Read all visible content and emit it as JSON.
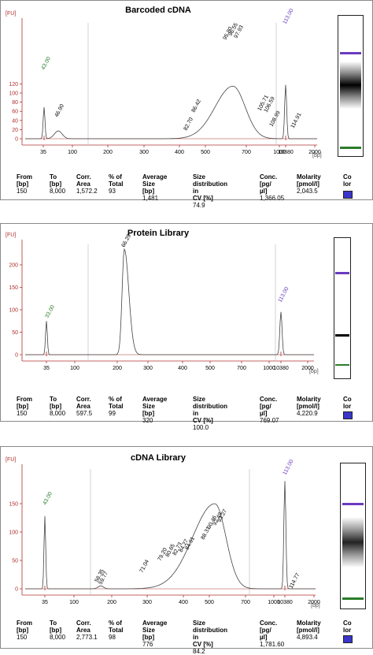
{
  "table_headers": [
    "From\n[bp]",
    "To [bp]",
    "Corr.\nArea",
    "% of\nTotal",
    "Average Size\n[bp]",
    "Size distribution in\nCV [%]",
    "Conc.\n[pg/µl]",
    "Molarity\n[pmol/l]",
    "Co\nlor"
  ],
  "panels": [
    {
      "title": "Barcoded cDNA",
      "fu_label": "[FU]",
      "bp_label": "[bp]",
      "yticks": [
        "0",
        "20",
        "40",
        "60",
        "80",
        "100",
        "120"
      ],
      "xticks": [
        "35",
        "100",
        "200",
        "300",
        "400",
        "500",
        "700",
        "1000",
        "2000",
        "10380"
      ],
      "row": [
        "150",
        "8,000",
        "1,572.2",
        "93",
        "1,481",
        "74.9",
        "1,366.05",
        "2,043.5"
      ],
      "color": "#3b36c9",
      "peak_labels": [
        {
          "text": "43.00",
          "color": "#2a7d2a"
        },
        {
          "text": "46.90",
          "color": "#000000"
        },
        {
          "text": "82.70",
          "color": "#000000"
        },
        {
          "text": "86.42",
          "color": "#000000"
        },
        {
          "text": "95.80",
          "color": "#000000"
        },
        {
          "text": "96.55",
          "color": "#000000"
        },
        {
          "text": "97.93",
          "color": "#000000"
        },
        {
          "text": "105.71",
          "color": "#000000"
        },
        {
          "text": "106.59",
          "color": "#000000"
        },
        {
          "text": "108.99",
          "color": "#000000"
        },
        {
          "text": "113.00",
          "color": "#6a3bbf"
        },
        {
          "text": "114.91",
          "color": "#000000"
        }
      ]
    },
    {
      "title": "Protein Library",
      "fu_label": "[FU]",
      "bp_label": "[bp]",
      "yticks": [
        "0",
        "50",
        "100",
        "150",
        "200"
      ],
      "xticks": [
        "35",
        "100",
        "200",
        "300",
        "400",
        "500",
        "700",
        "1000",
        "2000",
        "10380"
      ],
      "row": [
        "150",
        "8,000",
        "597.5",
        "99",
        "320",
        "100.0",
        "769.07",
        "4,220.9"
      ],
      "color": "#3b36c9",
      "peak_labels": [
        {
          "text": "33.00",
          "color": "#2a7d2a"
        },
        {
          "text": "66.20",
          "color": "#000000"
        },
        {
          "text": "113.00",
          "color": "#6a3bbf"
        }
      ]
    },
    {
      "title": "cDNA Library",
      "fu_label": "[FU]",
      "bp_label": "[bp]",
      "yticks": [
        "0",
        "50",
        "100",
        "150"
      ],
      "xticks": [
        "35",
        "100",
        "200",
        "300",
        "400",
        "500",
        "700",
        "1000",
        "2000",
        "10380"
      ],
      "row": [
        "150",
        "8,000",
        "2,773.1",
        "98",
        "776",
        "84.2",
        "1,781.60",
        "4,893.4"
      ],
      "color": "#3b36c9",
      "peak_labels": [
        {
          "text": "43.00",
          "color": "#2a7d2a"
        },
        {
          "text": "58.35",
          "color": "#000000"
        },
        {
          "text": "59.77",
          "color": "#000000"
        },
        {
          "text": "71.04",
          "color": "#000000"
        },
        {
          "text": "79.20",
          "color": "#000000"
        },
        {
          "text": "80.65",
          "color": "#000000"
        },
        {
          "text": "82.73",
          "color": "#000000"
        },
        {
          "text": "84.27",
          "color": "#000000"
        },
        {
          "text": "84.91",
          "color": "#000000"
        },
        {
          "text": "88.31",
          "color": "#000000"
        },
        {
          "text": "90.46",
          "color": "#000000"
        },
        {
          "text": "92.49",
          "color": "#000000"
        },
        {
          "text": "93.27",
          "color": "#000000"
        },
        {
          "text": "113.00",
          "color": "#6a3bbf"
        },
        {
          "text": "114.77",
          "color": "#000000"
        }
      ]
    }
  ],
  "chart_data": [
    {
      "type": "line",
      "title": "Barcoded cDNA",
      "xlabel": "[bp]",
      "ylabel": "[FU]",
      "ylim": [
        -10,
        130
      ],
      "x_scale": "log",
      "x": [
        35,
        60,
        80,
        100,
        150,
        200,
        300,
        400,
        500,
        700,
        900,
        1000,
        1500,
        2000,
        3000,
        5000,
        10380
      ],
      "y": [
        67,
        10,
        3,
        0,
        0,
        1,
        5,
        8,
        12,
        30,
        85,
        110,
        90,
        40,
        15,
        5,
        118
      ]
    },
    {
      "type": "line",
      "title": "Protein Library",
      "xlabel": "[bp]",
      "ylabel": "[FU]",
      "ylim": [
        -20,
        250
      ],
      "x_scale": "log",
      "x": [
        35,
        150,
        200,
        260,
        300,
        400,
        500,
        1000,
        10380
      ],
      "y": [
        75,
        0,
        5,
        235,
        30,
        5,
        0,
        0,
        95
      ]
    },
    {
      "type": "line",
      "title": "cDNA Library",
      "xlabel": "[bp]",
      "ylabel": "[FU]",
      "ylim": [
        -10,
        175
      ],
      "x_scale": "log",
      "x": [
        35,
        100,
        150,
        200,
        300,
        400,
        500,
        600,
        700,
        1000,
        1500,
        2000,
        10380
      ],
      "y": [
        128,
        0,
        5,
        3,
        10,
        40,
        70,
        110,
        150,
        140,
        50,
        10,
        190
      ]
    }
  ]
}
